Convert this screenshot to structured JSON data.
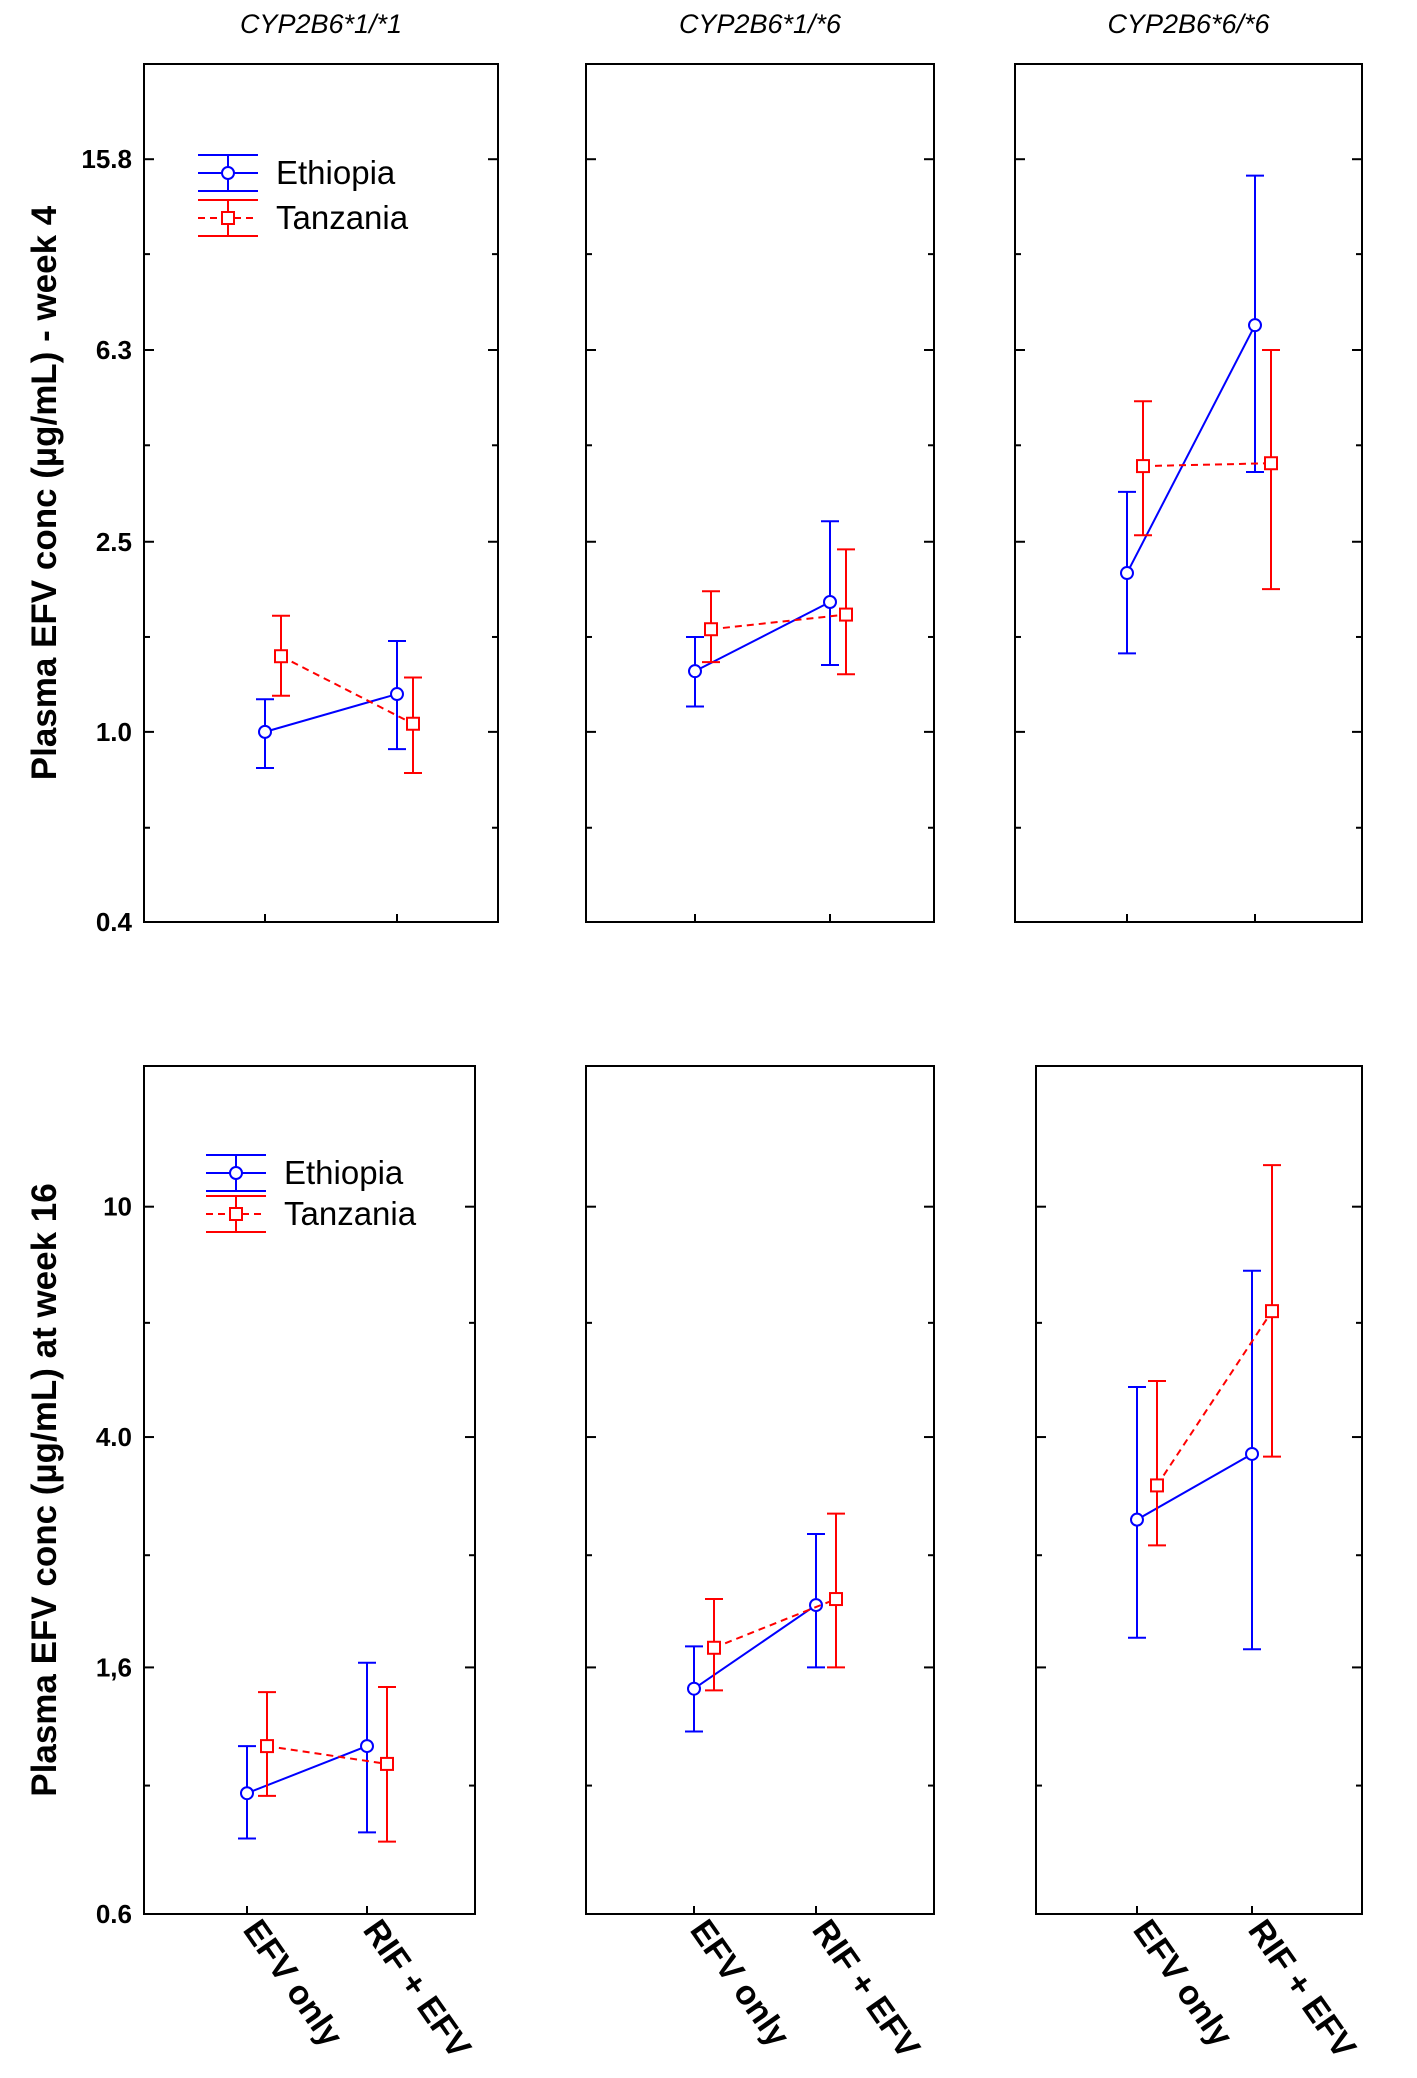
{
  "chart_data": [
    {
      "type": "line",
      "row_id": "week4",
      "ylabel": "Plasma EFV conc (µg/mL) - week 4",
      "y_scale": "log",
      "ylim": [
        0.4,
        25
      ],
      "yticks": [
        {
          "value": 0.4,
          "label": "0.4"
        },
        {
          "value": 1.0,
          "label": "1.0"
        },
        {
          "value": 2.5,
          "label": "2.5"
        },
        {
          "value": 6.3,
          "label": "6.3"
        },
        {
          "value": 15.8,
          "label": "15.8"
        }
      ],
      "yminor": [
        0.63,
        1.58,
        3.98,
        10.0
      ],
      "panels": [
        {
          "title": "CYP2B6*1/*1",
          "series": [
            {
              "name": "Ethiopia",
              "color": "#0000ff",
              "dash": "solid",
              "marker": "circle",
              "points": [
                {
                  "category": "EFV only",
                  "mean": 1.0,
                  "lower": 0.84,
                  "upper": 1.17
                },
                {
                  "category": "RIF + EFV",
                  "mean": 1.2,
                  "lower": 0.92,
                  "upper": 1.55
                }
              ]
            },
            {
              "name": "Tanzania",
              "color": "#ff0000",
              "dash": "dashed",
              "marker": "square",
              "points": [
                {
                  "category": "EFV only",
                  "mean": 1.44,
                  "lower": 1.19,
                  "upper": 1.75
                },
                {
                  "category": "RIF + EFV",
                  "mean": 1.04,
                  "lower": 0.82,
                  "upper": 1.3
                }
              ]
            }
          ]
        },
        {
          "title": "CYP2B6*1/*6",
          "series": [
            {
              "name": "Ethiopia",
              "color": "#0000ff",
              "dash": "solid",
              "marker": "circle",
              "points": [
                {
                  "category": "EFV only",
                  "mean": 1.34,
                  "lower": 1.13,
                  "upper": 1.58
                },
                {
                  "category": "RIF + EFV",
                  "mean": 1.87,
                  "lower": 1.38,
                  "upper": 2.76
                }
              ]
            },
            {
              "name": "Tanzania",
              "color": "#ff0000",
              "dash": "dashed",
              "marker": "square",
              "points": [
                {
                  "category": "EFV only",
                  "mean": 1.64,
                  "lower": 1.4,
                  "upper": 1.97
                },
                {
                  "category": "RIF + EFV",
                  "mean": 1.76,
                  "lower": 1.32,
                  "upper": 2.41
                }
              ]
            }
          ]
        },
        {
          "title": "CYP2B6*6/*6",
          "series": [
            {
              "name": "Ethiopia",
              "color": "#0000ff",
              "dash": "solid",
              "marker": "circle",
              "points": [
                {
                  "category": "EFV only",
                  "mean": 2.15,
                  "lower": 1.46,
                  "upper": 3.18
                },
                {
                  "category": "RIF + EFV",
                  "mean": 7.1,
                  "lower": 3.5,
                  "upper": 14.6
                }
              ]
            },
            {
              "name": "Tanzania",
              "color": "#ff0000",
              "dash": "dashed",
              "marker": "square",
              "points": [
                {
                  "category": "EFV only",
                  "mean": 3.6,
                  "lower": 2.58,
                  "upper": 4.92
                },
                {
                  "category": "RIF + EFV",
                  "mean": 3.65,
                  "lower": 1.99,
                  "upper": 6.3
                }
              ]
            }
          ]
        }
      ]
    },
    {
      "type": "line",
      "row_id": "week16",
      "ylabel": "Plasma EFV conc (µg/mL) at week 16",
      "y_scale": "log",
      "ylim": [
        0.6,
        17.5
      ],
      "yticks": [
        {
          "value": 0.6,
          "label": "0.6"
        },
        {
          "value": 1.6,
          "label": "1,6"
        },
        {
          "value": 4.0,
          "label": "4.0"
        },
        {
          "value": 10.0,
          "label": "10"
        }
      ],
      "yminor": [
        1.0,
        2.5,
        6.3
      ],
      "panels": [
        {
          "title": "",
          "series": [
            {
              "name": "Ethiopia",
              "color": "#0000ff",
              "dash": "solid",
              "marker": "circle",
              "points": [
                {
                  "category": "EFV only",
                  "mean": 0.97,
                  "lower": 0.81,
                  "upper": 1.17
                },
                {
                  "category": "RIF + EFV",
                  "mean": 1.17,
                  "lower": 0.83,
                  "upper": 1.63
                }
              ]
            },
            {
              "name": "Tanzania",
              "color": "#ff0000",
              "dash": "dashed",
              "marker": "square",
              "points": [
                {
                  "category": "EFV only",
                  "mean": 1.17,
                  "lower": 0.96,
                  "upper": 1.45
                },
                {
                  "category": "RIF + EFV",
                  "mean": 1.09,
                  "lower": 0.8,
                  "upper": 1.48
                }
              ]
            }
          ]
        },
        {
          "title": "",
          "series": [
            {
              "name": "Ethiopia",
              "color": "#0000ff",
              "dash": "solid",
              "marker": "circle",
              "points": [
                {
                  "category": "EFV only",
                  "mean": 1.47,
                  "lower": 1.24,
                  "upper": 1.74
                },
                {
                  "category": "RIF + EFV",
                  "mean": 2.05,
                  "lower": 1.6,
                  "upper": 2.72
                }
              ]
            },
            {
              "name": "Tanzania",
              "color": "#ff0000",
              "dash": "dashed",
              "marker": "square",
              "points": [
                {
                  "category": "EFV only",
                  "mean": 1.73,
                  "lower": 1.46,
                  "upper": 2.1
                },
                {
                  "category": "RIF + EFV",
                  "mean": 2.1,
                  "lower": 1.6,
                  "upper": 2.95
                }
              ]
            }
          ]
        },
        {
          "title": "",
          "series": [
            {
              "name": "Ethiopia",
              "color": "#0000ff",
              "dash": "solid",
              "marker": "circle",
              "points": [
                {
                  "category": "EFV only",
                  "mean": 2.88,
                  "lower": 1.8,
                  "upper": 4.88
                },
                {
                  "category": "RIF + EFV",
                  "mean": 3.74,
                  "lower": 1.72,
                  "upper": 7.75
                }
              ]
            },
            {
              "name": "Tanzania",
              "color": "#ff0000",
              "dash": "dashed",
              "marker": "square",
              "points": [
                {
                  "category": "EFV only",
                  "mean": 3.3,
                  "lower": 2.6,
                  "upper": 5.0
                },
                {
                  "category": "RIF + EFV",
                  "mean": 6.6,
                  "lower": 3.7,
                  "upper": 11.8
                }
              ]
            }
          ]
        }
      ]
    }
  ],
  "categories": [
    "EFV only",
    "RIF + EFV"
  ],
  "legend": [
    {
      "name": "Ethiopia",
      "color": "#0000ff",
      "dash": "solid",
      "marker": "circle"
    },
    {
      "name": "Tanzania",
      "color": "#ff0000",
      "dash": "dashed",
      "marker": "square"
    }
  ]
}
